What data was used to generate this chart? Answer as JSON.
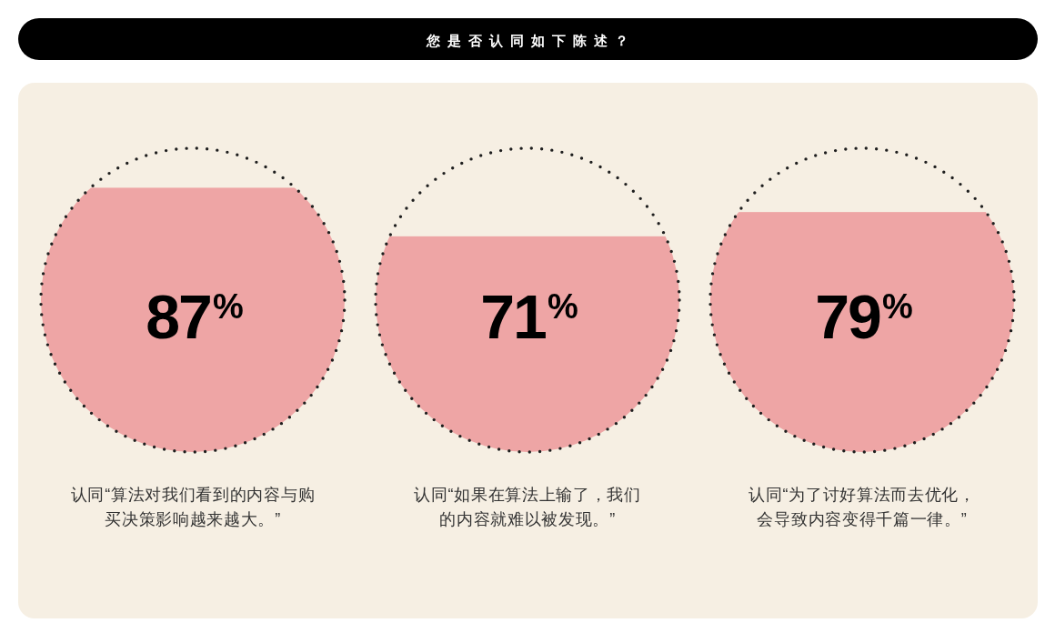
{
  "chart_data": {
    "type": "other",
    "title": "您是否认同如下陈述？",
    "categories": [
      "认同“算法对我们看到的内容与购买决策影响越来越大。”",
      "认同“如果在算法上输了，我们的内容就难以被发现。”",
      "认同“为了讨好算法而去优化，会导致内容变得千篇一律。”"
    ],
    "values": [
      87,
      71,
      79
    ],
    "value_labels": [
      "87$^{%}$",
      "71$^{%}$",
      "79$^{%}$"
    ],
    "color": "#eea5a5"
  }
}
